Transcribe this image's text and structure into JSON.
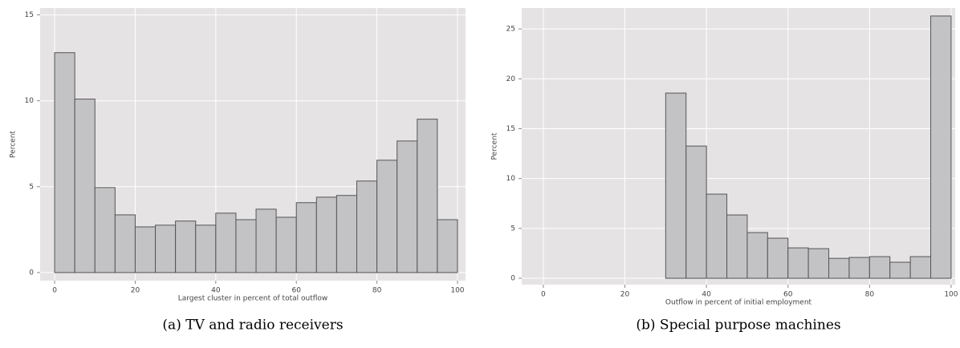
{
  "chart_data": [
    {
      "type": "histogram",
      "caption": "(a) TV and radio receivers",
      "x_label": "Largest cluster in percent of total outflow",
      "y_label": "Percent",
      "bins": [
        0,
        5,
        10,
        15,
        20,
        25,
        30,
        35,
        40,
        45,
        50,
        55,
        60,
        65,
        70,
        75,
        80,
        85,
        90,
        95,
        100
      ],
      "values": [
        12.8,
        10.1,
        4.95,
        3.36,
        2.66,
        2.76,
        3.0,
        2.76,
        3.46,
        3.08,
        3.69,
        3.22,
        4.07,
        4.39,
        4.49,
        5.33,
        6.54,
        7.66,
        8.93,
        3.08
      ],
      "xlim": [
        -3.6,
        102
      ],
      "ylim": [
        -0.47,
        15.4
      ],
      "xticks": [
        0,
        20,
        40,
        60,
        80,
        100
      ],
      "yticks": [
        0,
        5,
        10,
        15
      ],
      "color": "#c3c3c5",
      "grid": true
    },
    {
      "type": "histogram",
      "caption": "(b) Special purpose machines",
      "x_label": "Outflow in percent of initial employment",
      "y_label": "Percent",
      "bins": [
        30,
        35,
        40,
        45,
        50,
        55,
        60,
        65,
        70,
        75,
        80,
        85,
        90,
        95,
        100
      ],
      "values": [
        18.57,
        13.26,
        8.44,
        6.35,
        4.58,
        4.02,
        3.05,
        2.97,
        2.0,
        2.09,
        2.17,
        1.61,
        2.17,
        26.3
      ],
      "xlim": [
        -5.3,
        101
      ],
      "ylim": [
        -0.64,
        27.1
      ],
      "xticks": [
        0,
        20,
        40,
        60,
        80,
        100
      ],
      "yticks": [
        0,
        5,
        10,
        15,
        20,
        25
      ],
      "color": "#c3c3c5",
      "grid": true
    }
  ]
}
